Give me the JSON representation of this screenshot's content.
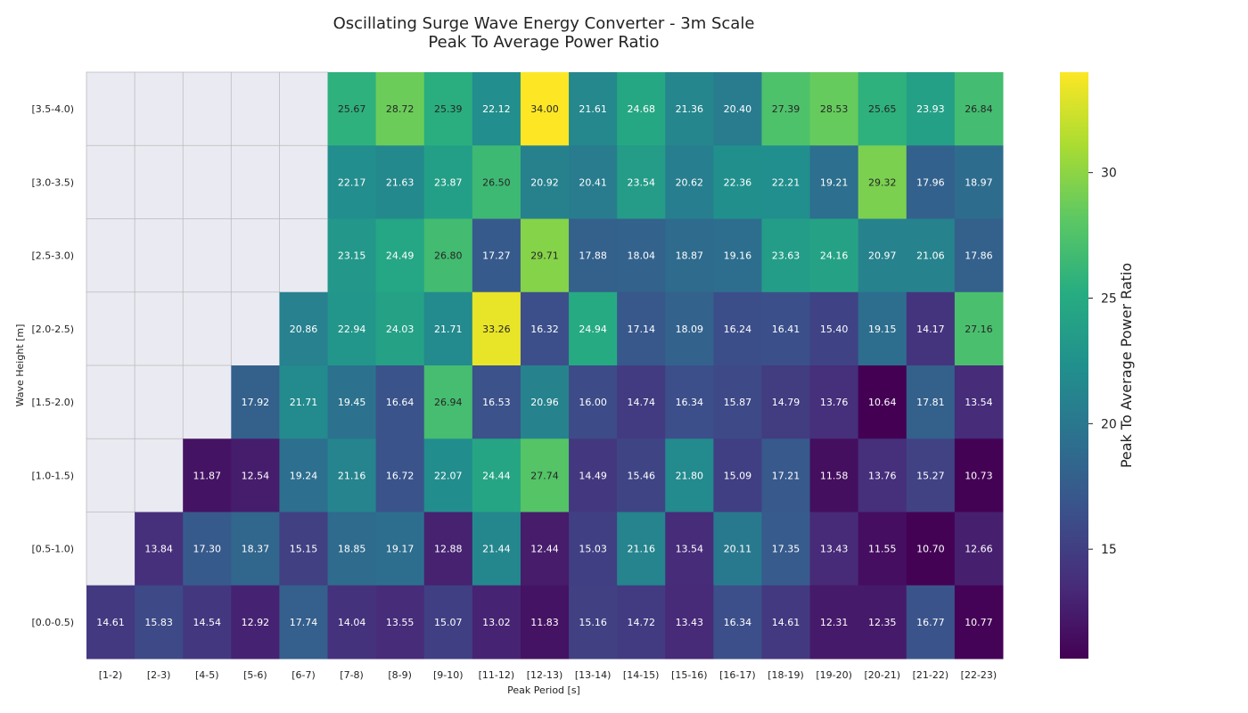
{
  "chart_data": {
    "type": "heatmap",
    "title": "Oscillating Surge Wave Energy Converter - 3m Scale",
    "subtitle": "Peak To Average Power Ratio",
    "xlabel": "Peak Period [s]",
    "ylabel": "Wave Height [m]",
    "colorbar_label": "Peak To Average Power Ratio",
    "colorbar_ticks": [
      15,
      20,
      25,
      30
    ],
    "colorbar_range": [
      10.64,
      34.0
    ],
    "colormap": "viridis",
    "missing_color": "#eaeaf2",
    "x_categories": [
      "[1-2)",
      "[2-3)",
      "[4-5)",
      "[5-6)",
      "[6-7)",
      "[7-8)",
      "[8-9)",
      "[9-10)",
      "[11-12)",
      "[12-13)",
      "[13-14)",
      "[14-15)",
      "[15-16)",
      "[16-17)",
      "[18-19)",
      "[19-20)",
      "[20-21)",
      "[21-22)",
      "[22-23)"
    ],
    "y_categories": [
      "[3.5-4.0)",
      "[3.0-3.5)",
      "[2.5-3.0)",
      "[2.0-2.5)",
      "[1.5-2.0)",
      "[1.0-1.5)",
      "[0.5-1.0)",
      "[0.0-0.5)"
    ],
    "values": [
      [
        null,
        null,
        null,
        null,
        null,
        25.67,
        28.72,
        25.39,
        22.12,
        34.0,
        21.61,
        24.68,
        21.36,
        20.4,
        27.39,
        28.53,
        25.65,
        23.93,
        26.84
      ],
      [
        null,
        null,
        null,
        null,
        null,
        22.17,
        21.63,
        23.87,
        26.5,
        20.92,
        20.41,
        23.54,
        20.62,
        22.36,
        22.21,
        19.21,
        29.32,
        17.96,
        18.97
      ],
      [
        null,
        null,
        null,
        null,
        null,
        23.15,
        24.49,
        26.8,
        17.27,
        29.71,
        17.88,
        18.04,
        18.87,
        19.16,
        23.63,
        24.16,
        20.97,
        21.06,
        17.86
      ],
      [
        null,
        null,
        null,
        null,
        20.86,
        22.94,
        24.03,
        21.71,
        33.26,
        16.32,
        24.94,
        17.14,
        18.09,
        16.24,
        16.41,
        15.4,
        19.15,
        14.17,
        27.16
      ],
      [
        null,
        null,
        null,
        17.92,
        21.71,
        19.45,
        16.64,
        26.94,
        16.53,
        20.96,
        16.0,
        14.74,
        16.34,
        15.87,
        14.79,
        13.76,
        10.64,
        17.81,
        13.54
      ],
      [
        null,
        null,
        11.87,
        12.54,
        19.24,
        21.16,
        16.72,
        22.07,
        24.44,
        27.74,
        14.49,
        15.46,
        21.8,
        15.09,
        17.21,
        11.58,
        13.76,
        15.27,
        10.73
      ],
      [
        null,
        13.84,
        17.3,
        18.37,
        15.15,
        18.85,
        19.17,
        12.88,
        21.44,
        12.44,
        15.03,
        21.16,
        13.54,
        20.11,
        17.35,
        13.43,
        11.55,
        10.7,
        12.66
      ],
      [
        14.61,
        15.83,
        14.54,
        12.92,
        17.74,
        14.04,
        13.55,
        15.07,
        13.02,
        11.83,
        15.16,
        14.72,
        13.43,
        16.34,
        14.61,
        12.31,
        12.35,
        16.77,
        10.77
      ]
    ]
  }
}
